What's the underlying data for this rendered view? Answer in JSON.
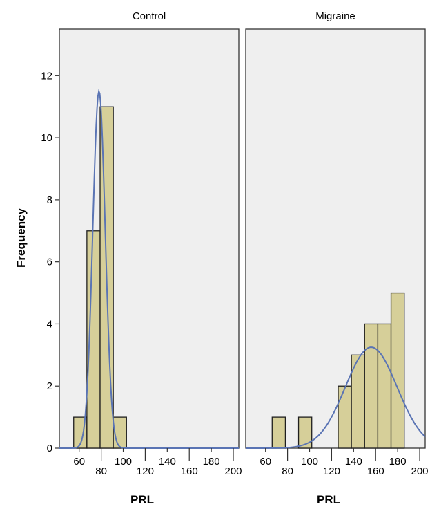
{
  "chart_data": {
    "type": "histogram",
    "ylabel": "Frequency",
    "ylim": [
      0,
      13.5
    ],
    "yticks": [
      0,
      2,
      4,
      6,
      8,
      10,
      12
    ],
    "xlim": [
      42,
      205
    ],
    "xticks": [
      60,
      80,
      100,
      120,
      140,
      160,
      180,
      200
    ],
    "bin_width": 12,
    "grid": false,
    "colors": {
      "plot_background": "#efefef",
      "bar_fill": "#d6cf99",
      "bar_stroke": "#1f1f1f",
      "curve": "#5a74b4",
      "frame": "#333333"
    },
    "panels": [
      {
        "title": "Control",
        "xlabel": "PRL",
        "bins": [
          {
            "x0": 55,
            "x1": 67,
            "count": 1
          },
          {
            "x0": 67,
            "x1": 79,
            "count": 7
          },
          {
            "x0": 79,
            "x1": 91,
            "count": 11
          },
          {
            "x0": 91,
            "x1": 103,
            "count": 1
          }
        ],
        "normal_curve": {
          "mean": 78,
          "sd": 5.7,
          "peak": 11.5
        }
      },
      {
        "title": "Migraine",
        "xlabel": "PRL",
        "bins": [
          {
            "x0": 66,
            "x1": 78,
            "count": 1
          },
          {
            "x0": 90,
            "x1": 102,
            "count": 1
          },
          {
            "x0": 126,
            "x1": 138,
            "count": 2
          },
          {
            "x0": 138,
            "x1": 150,
            "count": 3
          },
          {
            "x0": 150,
            "x1": 162,
            "count": 4
          },
          {
            "x0": 162,
            "x1": 174,
            "count": 4
          },
          {
            "x0": 174,
            "x1": 186,
            "count": 5
          }
        ],
        "normal_curve": {
          "mean": 156,
          "sd": 23.5,
          "peak": 3.25
        }
      }
    ]
  }
}
